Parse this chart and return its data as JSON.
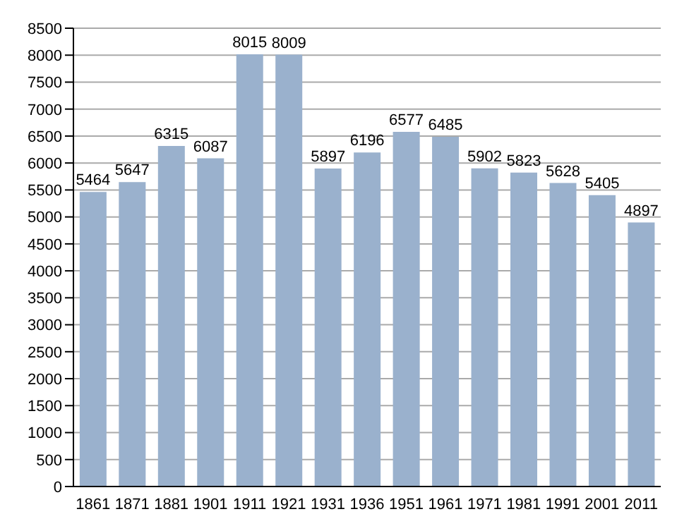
{
  "chart_data": {
    "type": "bar",
    "categories": [
      "1861",
      "1871",
      "1881",
      "1901",
      "1911",
      "1921",
      "1931",
      "1936",
      "1951",
      "1961",
      "1971",
      "1981",
      "1991",
      "2001",
      "2011"
    ],
    "values": [
      5464,
      5647,
      6315,
      6087,
      8015,
      8009,
      5897,
      6196,
      6577,
      6485,
      5902,
      5823,
      5628,
      5405,
      4897
    ],
    "color": "#9ab1cd",
    "ylim": [
      0,
      8500
    ],
    "yticks": [
      0,
      500,
      1000,
      1500,
      2000,
      2500,
      3000,
      3500,
      4000,
      4500,
      5000,
      5500,
      6000,
      6500,
      7000,
      7500,
      8000,
      8500
    ],
    "grid": "y",
    "data_labels": true
  }
}
